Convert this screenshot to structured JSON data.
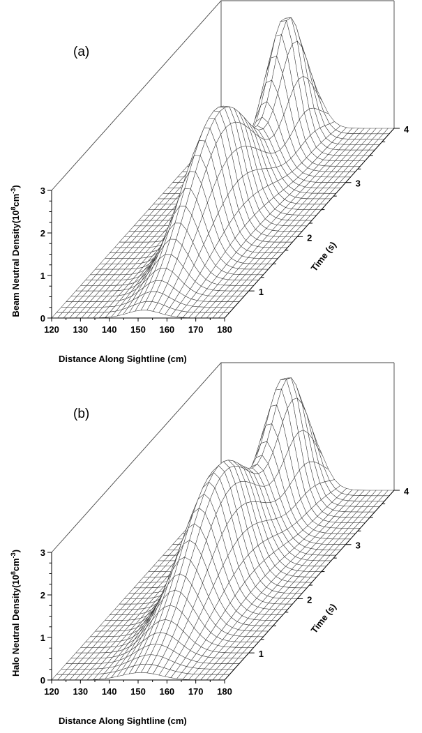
{
  "chart_data": [
    {
      "type": "surface",
      "panel_label": "(a)",
      "xlabel": "Distance Along Sightline (cm)",
      "ylabel_main": "Beam Neutral Density(10",
      "ylabel_sup1": "8",
      "ylabel_mid": "cm",
      "ylabel_sup2": "-3",
      "ylabel_end": ")",
      "tlabel": "Time (s)",
      "xlim": [
        120,
        180
      ],
      "zlim": [
        0,
        3
      ],
      "tlim": [
        0.5,
        4
      ],
      "x_ticks": [
        "120",
        "130",
        "140",
        "150",
        "160",
        "170",
        "180"
      ],
      "z_ticks": [
        "0",
        "1",
        "2",
        "3"
      ],
      "t_ticks": [
        "1",
        "2",
        "3",
        "4"
      ],
      "surface": {
        "t_start": 0.5,
        "t_end": 4.0,
        "t_points": 36,
        "x_points": 30,
        "peaks": [
          {
            "x_center": 152,
            "x_width": 8.0,
            "t_center": 2.0,
            "t_width": 0.9,
            "amplitude": 3.0
          },
          {
            "x_center": 150,
            "x_width": 6.5,
            "t_center": 3.55,
            "t_width": 0.45,
            "amplitude": 3.1
          }
        ]
      }
    },
    {
      "type": "surface",
      "panel_label": "(b)",
      "xlabel": "Distance Along Sightline (cm)",
      "ylabel_main": "Halo Neutral Density(10",
      "ylabel_sup1": "8",
      "ylabel_mid": "cm",
      "ylabel_sup2": "-3",
      "ylabel_end": ")",
      "tlabel": "Time (s)",
      "xlim": [
        120,
        180
      ],
      "zlim": [
        0,
        3
      ],
      "tlim": [
        0.5,
        4
      ],
      "x_ticks": [
        "120",
        "130",
        "140",
        "150",
        "160",
        "170",
        "180"
      ],
      "z_ticks": [
        "0",
        "1",
        "2",
        "3"
      ],
      "t_ticks": [
        "1",
        "2",
        "3",
        "4"
      ],
      "surface": {
        "t_start": 0.5,
        "t_end": 4.0,
        "t_points": 36,
        "x_points": 30,
        "peaks": [
          {
            "x_center": 151,
            "x_width": 9.5,
            "t_center": 2.1,
            "t_width": 0.95,
            "amplitude": 3.0
          },
          {
            "x_center": 150,
            "x_width": 7.0,
            "t_center": 3.55,
            "t_width": 0.5,
            "amplitude": 3.0
          }
        ]
      }
    }
  ]
}
